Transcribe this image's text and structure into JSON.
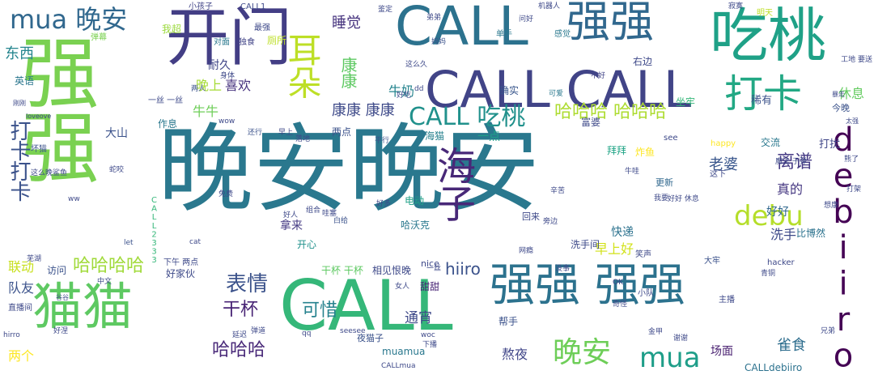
{
  "words": [
    {
      "text": "晚安晚安",
      "color": "#2a788e",
      "weight": 100
    },
    {
      "text": "强强",
      "color": "#7ad151",
      "weight": 78,
      "vertical": true
    },
    {
      "text": "开门",
      "color": "#433e85",
      "weight": 62
    },
    {
      "text": "CALL CALL",
      "color": "#414487",
      "weight": 56
    },
    {
      "text": "CALL",
      "color": "#35b779",
      "weight": 60
    },
    {
      "text": "CALL",
      "color": "#2c728e",
      "weight": 50
    },
    {
      "text": "吃桃",
      "color": "#1fa187",
      "weight": 55
    },
    {
      "text": "强强",
      "color": "#31688e",
      "weight": 45
    },
    {
      "text": "猫猫",
      "color": "#5ec962",
      "weight": 50
    },
    {
      "text": "强强 强强",
      "color": "#2c728e",
      "weight": 48
    },
    {
      "text": "debiiro",
      "color": "#440154",
      "weight": 44,
      "vertical": true
    },
    {
      "text": "海子",
      "color": "#482878",
      "weight": 45,
      "vertical": true
    },
    {
      "text": "打卡",
      "color": "#22a884",
      "weight": 42
    },
    {
      "text": "打卡打卡",
      "color": "#3b528b",
      "weight": 22,
      "vertical": true
    },
    {
      "text": "mua 晚安",
      "color": "#31688e",
      "weight": 30
    },
    {
      "text": "耳朵",
      "color": "#bddf26",
      "weight": 36,
      "vertical": true
    },
    {
      "text": "康康",
      "color": "#5ec962",
      "weight": 20,
      "vertical": true
    },
    {
      "text": "CALL 吃桃",
      "color": "#21918c",
      "weight": 30
    },
    {
      "text": "debu",
      "color": "#b5de2b",
      "weight": 32
    },
    {
      "text": "晚安",
      "color": "#6ece58",
      "weight": 28
    },
    {
      "text": "mua",
      "color": "#1f9e89",
      "weight": 30
    },
    {
      "text": "哈哈哈 哈哈哈",
      "color": "#addc30",
      "weight": 20
    },
    {
      "text": "康康 康康",
      "color": "#3e4a89",
      "weight": 18
    },
    {
      "text": "哈哈哈哈",
      "color": "#a0da39",
      "weight": 20
    },
    {
      "text": "表情",
      "color": "#3b528b",
      "weight": 22
    },
    {
      "text": "干杯",
      "color": "#482475",
      "weight": 20
    },
    {
      "text": "哈哈哈",
      "color": "#482878",
      "weight": 20
    },
    {
      "text": "可惜",
      "color": "#26828e",
      "weight": 20
    },
    {
      "text": "东西",
      "color": "#25858e",
      "weight": 18
    },
    {
      "text": "睡觉",
      "color": "#46337e",
      "weight": 16
    },
    {
      "text": "离谱",
      "color": "#443983",
      "weight": 20
    },
    {
      "text": "老婆",
      "color": "#39568c",
      "weight": 18
    },
    {
      "text": "雀食",
      "color": "#2e6e8e",
      "weight": 18
    },
    {
      "text": "熬夜",
      "color": "#404688",
      "weight": 16
    },
    {
      "text": "场面",
      "color": "#481f70",
      "weight": 14
    },
    {
      "text": "hiiro",
      "color": "#3b528b",
      "weight": 18
    },
    {
      "text": "通宵",
      "color": "#3e4989",
      "weight": 15
    },
    {
      "text": "真的",
      "color": "#453781",
      "weight": 15
    },
    {
      "text": "牛奶",
      "color": "#25848e",
      "weight": 15
    },
    {
      "text": "牛牛",
      "color": "#6ece58",
      "weight": 14
    },
    {
      "text": "晚上",
      "color": "#a5db36",
      "weight": 14
    },
    {
      "text": "喜欢",
      "color": "#46327e",
      "weight": 14
    },
    {
      "text": "耐久",
      "color": "#404688",
      "weight": 13
    },
    {
      "text": "厕所",
      "color": "#bddf26",
      "weight": 11
    },
    {
      "text": "大山",
      "color": "#3b528b",
      "weight": 13
    },
    {
      "text": "休息",
      "color": "#63cb5f",
      "weight": 14
    },
    {
      "text": "早上好",
      "color": "#d2e21b",
      "weight": 14
    },
    {
      "text": "洗手",
      "color": "#3e4a89",
      "weight": 14
    },
    {
      "text": "快递",
      "color": "#2c728e",
      "weight": 12
    },
    {
      "text": "好好",
      "color": "#31688e",
      "weight": 12
    },
    {
      "text": "联动",
      "color": "#c8e020",
      "weight": 14
    },
    {
      "text": "队友",
      "color": "#3b528b",
      "weight": 14
    },
    {
      "text": "两个",
      "color": "#fde725",
      "weight": 14
    },
    {
      "text": "拿来",
      "color": "#443a83",
      "weight": 13
    },
    {
      "text": "一点",
      "color": "#1fa188",
      "weight": 13
    },
    {
      "text": "打扰",
      "color": "#404688",
      "weight": 12
    },
    {
      "text": "英语",
      "color": "#2a768e",
      "weight": 11
    },
    {
      "text": "作息",
      "color": "#2a788e",
      "weight": 11
    },
    {
      "text": "相见恨晚",
      "color": "#3e4989",
      "weight": 11
    },
    {
      "text": "干杯 干杯",
      "color": "#5ec962",
      "weight": 11
    },
    {
      "text": "好家伙",
      "color": "#3e4a89",
      "weight": 11
    },
    {
      "text": "访问",
      "color": "#3b528b",
      "weight": 11
    },
    {
      "text": "炸鱼",
      "color": "#fde725",
      "weight": 11
    },
    {
      "text": "海猫",
      "color": "#26818e",
      "weight": 11
    },
    {
      "text": "哈沃克",
      "color": "#2a788e",
      "weight": 11
    },
    {
      "text": "我超",
      "color": "#9bd93c",
      "weight": 11
    },
    {
      "text": "坐牢",
      "color": "#35b779",
      "weight": 11
    },
    {
      "text": "稀有",
      "color": "#3b528b",
      "weight": 11
    },
    {
      "text": "开心",
      "color": "#21918c",
      "weight": 11
    },
    {
      "text": "两点",
      "color": "#3b528b",
      "weight": 11
    },
    {
      "text": "拜拜",
      "color": "#20a486",
      "weight": 11
    },
    {
      "text": "富婆",
      "color": "#3e4989",
      "weight": 10
    },
    {
      "text": "右边",
      "color": "#3e4989",
      "weight": 10
    },
    {
      "text": "确实",
      "color": "#39568c",
      "weight": 10
    },
    {
      "text": "帮手",
      "color": "#3b528b",
      "weight": 10
    },
    {
      "text": "甜甜",
      "color": "#482475",
      "weight": 10
    },
    {
      "text": "夜猫子",
      "color": "#3b528b",
      "weight": 9
    },
    {
      "text": "muamua",
      "color": "#2a788e",
      "weight": 10
    },
    {
      "text": "CALLdebiiro",
      "color": "#2c728e",
      "weight": 10
    },
    {
      "text": "CALL2333",
      "color": "#35b779",
      "weight": 9,
      "vertical": true
    },
    {
      "text": "洗手间",
      "color": "#3e4a89",
      "weight": 9
    },
    {
      "text": "交流",
      "color": "#2a788e",
      "weight": 9
    },
    {
      "text": "今晚",
      "color": "#3b528b",
      "weight": 9
    },
    {
      "text": "比博然",
      "color": "#2c728e",
      "weight": 9
    },
    {
      "text": "电动",
      "color": "#1fa187",
      "weight": 9
    },
    {
      "text": "一丝 一丝",
      "color": "#3e4a89",
      "weight": 9
    },
    {
      "text": "小孩子",
      "color": "#414487",
      "weight": 8
    },
    {
      "text": "CALL1",
      "color": "#3e4989",
      "weight": 8
    },
    {
      "text": "小队",
      "color": "#3e4989",
      "weight": 8
    },
    {
      "text": "更新",
      "color": "#31688e",
      "weight": 8
    },
    {
      "text": "hacker",
      "color": "#3e4989",
      "weight": 8
    },
    {
      "text": "大牢",
      "color": "#3b528b",
      "weight": 8
    },
    {
      "text": "明天",
      "color": "#bddf26",
      "weight": 8
    },
    {
      "text": "单手",
      "color": "#2a788e",
      "weight": 8
    },
    {
      "text": "感觉",
      "color": "#2a788e",
      "weight": 8
    },
    {
      "text": "弹幕",
      "color": "#7ad151",
      "weight": 8
    },
    {
      "text": "对面",
      "color": "#2a788e",
      "weight": 7
    },
    {
      "text": "独食",
      "color": "#414487",
      "weight": 7
    },
    {
      "text": "坏猫",
      "color": "#3b528b",
      "weight": 7
    },
    {
      "text": "这么晚",
      "color": "#3e4989",
      "weight": 7
    },
    {
      "text": "鲨鱼",
      "color": "#3e4989",
      "weight": 7
    },
    {
      "text": "蛇咬",
      "color": "#3e4989",
      "weight": 7
    },
    {
      "text": "妈妈",
      "color": "#3b528b",
      "weight": 7
    },
    {
      "text": "机器人",
      "color": "#3e4989",
      "weight": 7
    },
    {
      "text": "好吃",
      "color": "#3e4989",
      "weight": 7
    },
    {
      "text": "可爱",
      "color": "#2a788e",
      "weight": 7
    },
    {
      "text": "不好",
      "color": "#414487",
      "weight": 7
    },
    {
      "text": "see",
      "color": "#3e4989",
      "weight": 7
    },
    {
      "text": "happy",
      "color": "#fde725",
      "weight": 7
    },
    {
      "text": "魔法 子弹",
      "color": "#3e4989",
      "weight": 7
    },
    {
      "text": "两人",
      "color": "#3b528b",
      "weight": 7
    },
    {
      "text": "身体",
      "color": "#3e4989",
      "weight": 6
    },
    {
      "text": "wow",
      "color": "#3e4989",
      "weight": 6
    },
    {
      "text": "还行",
      "color": "#3b528b",
      "weight": 6
    },
    {
      "text": "早上",
      "color": "#3e4989",
      "weight": 6
    },
    {
      "text": "落地",
      "color": "#3e4989",
      "weight": 6
    },
    {
      "text": "哇塞",
      "color": "#3e4989",
      "weight": 6
    },
    {
      "text": "平行",
      "color": "#3b528b",
      "weight": 6
    },
    {
      "text": "好多",
      "color": "#3e4989",
      "weight": 6
    },
    {
      "text": "回来",
      "color": "#3e4989",
      "weight": 6
    },
    {
      "text": "笑声",
      "color": "#3e4989",
      "weight": 7
    },
    {
      "text": "旁边",
      "color": "#3e4989",
      "weight": 7
    },
    {
      "text": "nice",
      "color": "#3e4989",
      "weight": 6
    },
    {
      "text": "let",
      "color": "#3b528b",
      "weight": 7
    },
    {
      "text": "cat",
      "color": "#3e4989",
      "weight": 6
    },
    {
      "text": "ww",
      "color": "#3e4989",
      "weight": 6
    },
    {
      "text": "免费",
      "color": "#3e4989",
      "weight": 6
    },
    {
      "text": "白给",
      "color": "#3b528b",
      "weight": 6
    },
    {
      "text": "好人",
      "color": "#3e4989",
      "weight": 6
    },
    {
      "text": "组合",
      "color": "#3e4989",
      "weight": 6
    },
    {
      "text": "直播间",
      "color": "#3e4989",
      "weight": 6
    },
    {
      "text": "hirro",
      "color": "#3e4989",
      "weight": 6
    },
    {
      "text": "延迟",
      "color": "#3e4989",
      "weight": 6
    },
    {
      "text": "弹道",
      "color": "#3e4989",
      "weight": 6
    },
    {
      "text": "seesee",
      "color": "#3e4989",
      "weight": 6
    },
    {
      "text": "qq",
      "color": "#3e4989",
      "weight": 6
    },
    {
      "text": "女人",
      "color": "#3e4989",
      "weight": 6
    },
    {
      "text": "一丝",
      "color": "#3e4989",
      "weight": 6
    },
    {
      "text": "woc",
      "color": "#3e4989",
      "weight": 6
    },
    {
      "text": "下播",
      "color": "#3e4989",
      "weight": 6
    },
    {
      "text": "下午 两点",
      "color": "#3e4989",
      "weight": 6
    },
    {
      "text": "没事",
      "color": "#3e4989",
      "weight": 7
    },
    {
      "text": "OK",
      "color": "#3e4989",
      "weight": 6
    },
    {
      "text": "奇怪",
      "color": "#3e4989",
      "weight": 6
    },
    {
      "text": "主播",
      "color": "#3e4989",
      "weight": 6
    },
    {
      "text": "青铜",
      "color": "#3e4989",
      "weight": 6
    },
    {
      "text": "金甲",
      "color": "#3e4989",
      "weight": 6
    },
    {
      "text": "谢谢",
      "color": "#3e4989",
      "weight": 6
    },
    {
      "text": "兄弟",
      "color": "#3e4989",
      "weight": 6
    },
    {
      "text": "CALLmua",
      "color": "#3e4989",
      "weight": 6
    },
    {
      "text": "这么久",
      "color": "#3e4989",
      "weight": 6
    },
    {
      "text": "dd",
      "color": "#3e4989",
      "weight": 6
    },
    {
      "text": "刚刚",
      "color": "#3e4989",
      "weight": 6
    },
    {
      "text": "loveove",
      "color": "#3e4989",
      "weight": 6
    },
    {
      "text": "鉴定",
      "color": "#3e4989",
      "weight": 6
    },
    {
      "text": "弟弟",
      "color": "#3e4989",
      "weight": 6
    },
    {
      "text": "最强",
      "color": "#3e4989",
      "weight": 6
    },
    {
      "text": "这下",
      "color": "#3e4989",
      "weight": 7
    },
    {
      "text": "我要",
      "color": "#3e4989",
      "weight": 7
    },
    {
      "text": "好好 休息",
      "color": "#3e4989",
      "weight": 6
    },
    {
      "text": "辛苦",
      "color": "#3e4989",
      "weight": 6
    },
    {
      "text": "想康",
      "color": "#3e4989",
      "weight": 6
    },
    {
      "text": "工地 要送",
      "color": "#3e4989",
      "weight": 6
    },
    {
      "text": "暴走",
      "color": "#3e4989",
      "weight": 6
    },
    {
      "text": "太强",
      "color": "#3e4989",
      "weight": 6
    },
    {
      "text": "牛哇",
      "color": "#3e4989",
      "weight": 6
    },
    {
      "text": "网瘾",
      "color": "#3e4989",
      "weight": 6
    },
    {
      "text": "好涅",
      "color": "#3e4989",
      "weight": 6
    },
    {
      "text": "谷谷",
      "color": "#3e4989",
      "weight": 6
    },
    {
      "text": "熊了",
      "color": "#3e4989",
      "weight": 6
    },
    {
      "text": "打架",
      "color": "#3e4989",
      "weight": 6
    },
    {
      "text": "中文",
      "color": "#3e4989",
      "weight": 6
    },
    {
      "text": "芜湖",
      "color": "#3e4989",
      "weight": 6
    },
    {
      "text": "问好",
      "color": "#3e4989",
      "weight": 6
    },
    {
      "text": "寂寞",
      "color": "#3e4989",
      "weight": 6
    },
    {
      "text": "观战 延迟",
      "color": "#3e4989",
      "weight": 6
    },
    {
      "text": "音符 梦园",
      "color": "#3e4989",
      "weight": 6
    }
  ]
}
